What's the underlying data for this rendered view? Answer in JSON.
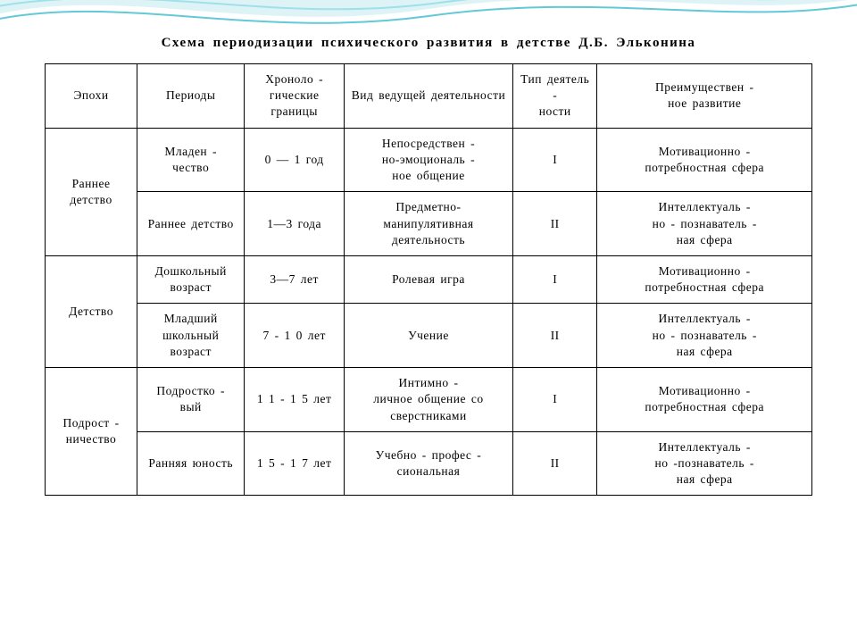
{
  "title": "Схема периодизации психического развития в детстве Д.Б. Эльконина",
  "columns": [
    "Эпохи",
    "Периоды",
    "Хроноло -\nгические границы",
    "Вид ведущей деятельности",
    "Тип деятель -\nности",
    "Преимуществен -\nное развитие"
  ],
  "col_widths_pct": [
    12,
    14,
    13,
    22,
    11,
    28
  ],
  "rows": [
    {
      "epoch": "Раннее детство",
      "epoch_rowspan": 2,
      "period": "Младен -\nчество",
      "range": "0 — 1 год",
      "activity": "Непосредствен -\nно-эмоциональ -\nное общение",
      "type": "I",
      "development": "Мотивационно -\nпотребностная сфера"
    },
    {
      "period": "Раннее детство",
      "range": "1—3 года",
      "activity": "Предметно-\nманипулятивная деятельность",
      "type": "II",
      "development": "Интеллектуаль -\nно - познаватель -\nная сфера"
    },
    {
      "epoch": "Детство",
      "epoch_rowspan": 2,
      "period": "Дошкольный возраст",
      "range": "3—7 лет",
      "activity": "Ролевая игра",
      "type": "I",
      "development": "Мотивационно -\nпотребностная сфера"
    },
    {
      "period": "Младший школьный возраст",
      "range": "7 - 1 0 лет",
      "activity": "Учение",
      "type": "II",
      "development": "Интеллектуаль -\nно - познаватель -\nная сфера"
    },
    {
      "epoch": "Подрост -\nничество",
      "epoch_rowspan": 2,
      "period": "Подростко -\nвый",
      "range": "1 1 - 1 5 лет",
      "activity": "Интимно -\nличное общение со сверстниками",
      "type": "I",
      "development": "Мотивационно -\nпотребностная сфера"
    },
    {
      "period": "Ранняя юность",
      "range": "1 5 - 1 7 лет",
      "activity": "Учебно - профес -\nсиональная",
      "type": "II",
      "development": "Интеллектуаль -\nно -познаватель -\nная сфера"
    }
  ],
  "colors": {
    "border": "#000000",
    "text": "#000000",
    "background": "#ffffff",
    "wave_fill": "#cfeef2",
    "wave_stroke1": "#63c9d6",
    "wave_stroke2": "#9fe0ea"
  },
  "typography": {
    "title_fontsize_pt": 12,
    "cell_fontsize_pt": 10,
    "font_family": "Times New Roman"
  }
}
